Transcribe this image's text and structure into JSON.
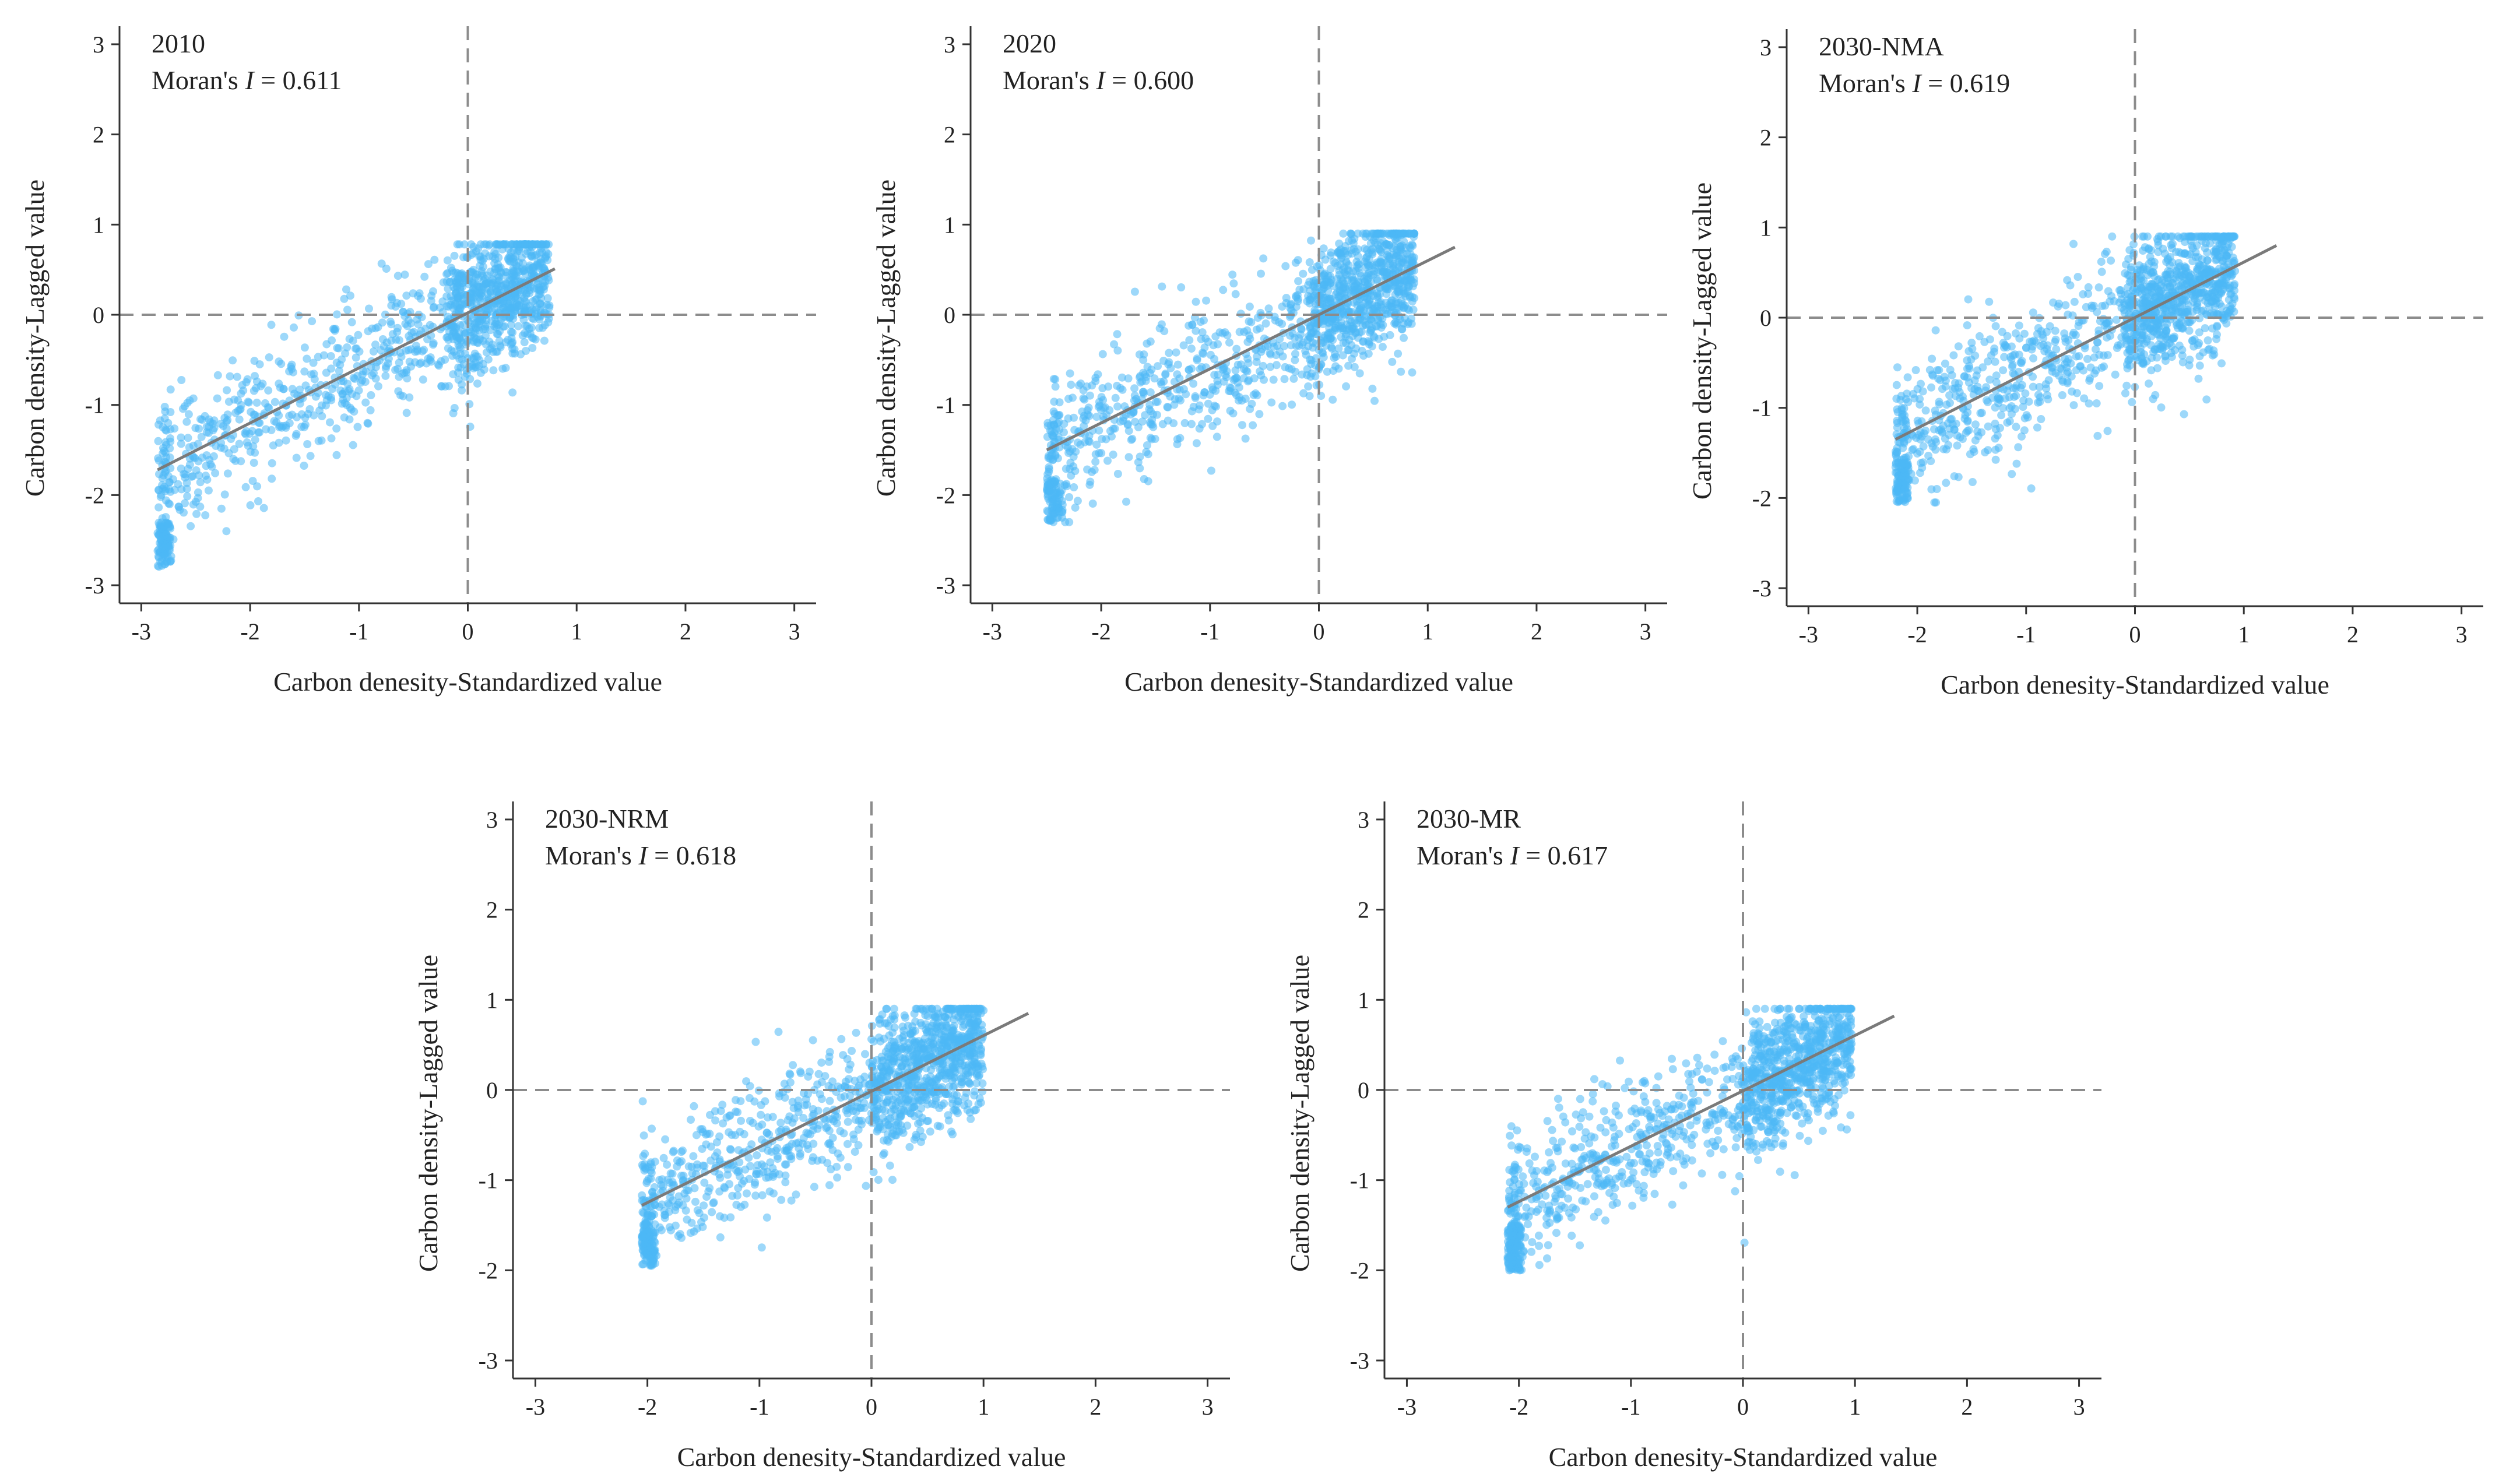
{
  "chart_data": [
    {
      "type": "scatter",
      "label": "2010",
      "stat_prefix": "Moran's ",
      "stat_symbol": "I",
      "stat_value": "= 0.611",
      "moran_i": 0.611,
      "xlabel": "Carbon denesity-Standardized value",
      "ylabel": "Carbon density-Lagged value",
      "xlim": [
        -3.2,
        3.2
      ],
      "ylim": [
        -3.2,
        3.2
      ],
      "xticks": [
        -3,
        -2,
        -1,
        0,
        1,
        2,
        3
      ],
      "yticks": [
        -3,
        -2,
        -1,
        0,
        1,
        2,
        3
      ],
      "fit_line": {
        "x": [
          -2.85,
          0.8
        ],
        "y": [
          -1.72,
          0.51
        ]
      },
      "point_cloud": {
        "x_min": -2.85,
        "x_max": 0.75,
        "dense_x_min": -0.2,
        "lower_cluster_y": -2.8,
        "count": 1400
      },
      "color": "#4db8f5"
    },
    {
      "type": "scatter",
      "label": "2020",
      "stat_prefix": "Moran's ",
      "stat_symbol": "I",
      "stat_value": "= 0.600",
      "moran_i": 0.6,
      "xlabel": "Carbon denesity-Standardized value",
      "ylabel": "Carbon density-Lagged value",
      "xlim": [
        -3.2,
        3.2
      ],
      "ylim": [
        -3.2,
        3.2
      ],
      "xticks": [
        -3,
        -2,
        -1,
        0,
        1,
        2,
        3
      ],
      "yticks": [
        -3,
        -2,
        -1,
        0,
        1,
        2,
        3
      ],
      "fit_line": {
        "x": [
          -2.5,
          1.25
        ],
        "y": [
          -1.5,
          0.75
        ]
      },
      "point_cloud": {
        "x_min": -2.5,
        "x_max": 0.88,
        "dense_x_min": -0.1,
        "lower_cluster_y": -2.3,
        "count": 1400
      },
      "color": "#4db8f5"
    },
    {
      "type": "scatter",
      "label": "2030-NMA",
      "stat_prefix": "Moran's ",
      "stat_symbol": "I",
      "stat_value": "= 0.619",
      "moran_i": 0.619,
      "xlabel": "Carbon denesity-Standardized value",
      "ylabel": "Carbon density-Lagged value",
      "xlim": [
        -3.2,
        3.2
      ],
      "ylim": [
        -3.2,
        3.2
      ],
      "xticks": [
        -3,
        -2,
        -1,
        0,
        1,
        2,
        3
      ],
      "yticks": [
        -3,
        -2,
        -1,
        0,
        1,
        2,
        3
      ],
      "fit_line": {
        "x": [
          -2.2,
          1.3
        ],
        "y": [
          -1.35,
          0.8
        ]
      },
      "point_cloud": {
        "x_min": -2.2,
        "x_max": 0.92,
        "dense_x_min": -0.1,
        "lower_cluster_y": -2.05,
        "count": 1400
      },
      "color": "#4db8f5"
    },
    {
      "type": "scatter",
      "label": "2030-NRM",
      "stat_prefix": "Moran's ",
      "stat_symbol": "I",
      "stat_value": "= 0.618",
      "moran_i": 0.618,
      "xlabel": "Carbon denesity-Standardized value",
      "ylabel": "Carbon density-Lagged value",
      "xlim": [
        -3.2,
        3.2
      ],
      "ylim": [
        -3.2,
        3.2
      ],
      "xticks": [
        -3,
        -2,
        -1,
        0,
        1,
        2,
        3
      ],
      "yticks": [
        -3,
        -2,
        -1,
        0,
        1,
        2,
        3
      ],
      "fit_line": {
        "x": [
          -2.05,
          1.4
        ],
        "y": [
          -1.28,
          0.85
        ]
      },
      "point_cloud": {
        "x_min": -2.05,
        "x_max": 1.0,
        "dense_x_min": 0.0,
        "lower_cluster_y": -1.95,
        "count": 1400
      },
      "color": "#4db8f5"
    },
    {
      "type": "scatter",
      "label": "2030-MR",
      "stat_prefix": "Moran's ",
      "stat_symbol": "I",
      "stat_value": "= 0.617",
      "moran_i": 0.617,
      "xlabel": "Carbon denesity-Standardized value",
      "ylabel": "Carbon density-Lagged value",
      "xlim": [
        -3.2,
        3.2
      ],
      "ylim": [
        -3.2,
        3.2
      ],
      "xticks": [
        -3,
        -2,
        -1,
        0,
        1,
        2,
        3
      ],
      "yticks": [
        -3,
        -2,
        -1,
        0,
        1,
        2,
        3
      ],
      "fit_line": {
        "x": [
          -2.1,
          1.35
        ],
        "y": [
          -1.3,
          0.82
        ]
      },
      "point_cloud": {
        "x_min": -2.1,
        "x_max": 0.97,
        "dense_x_min": 0.0,
        "lower_cluster_y": -2.0,
        "count": 1400
      },
      "color": "#4db8f5"
    }
  ]
}
